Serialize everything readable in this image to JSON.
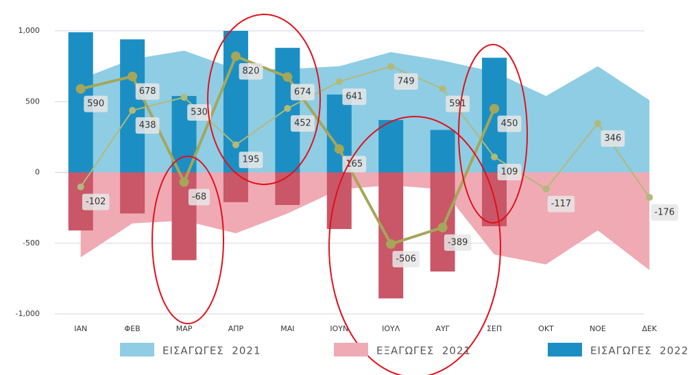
{
  "chart_data": {
    "type": "combo",
    "categories": [
      "ΙΑΝ",
      "ΦΕΒ",
      "ΜΑΡ",
      "ΑΠΡ",
      "ΜΑΙ",
      "ΙΟΥΝ",
      "ΙΟΥΛ",
      "ΑΥΓ",
      "ΣΕΠ",
      "ΟΚΤ",
      "ΝΟΕ",
      "ΔΕΚ"
    ],
    "ylim": [
      -1000,
      1000
    ],
    "yticks": [
      {
        "value": 1000,
        "label": "1,000"
      },
      500,
      0,
      -500,
      {
        "value": -1000,
        "label": "-1,000"
      }
    ],
    "grid": true,
    "series": [
      {
        "name": "ΕΙΣΑΓΩΓΕΣ  2021",
        "type": "area",
        "color": "#8fcde4",
        "values": [
          660,
          800,
          860,
          730,
          730,
          750,
          850,
          790,
          710,
          540,
          750,
          510
        ]
      },
      {
        "name": "ΕΞΑΓΩΓΕΣ  2021",
        "type": "area",
        "color": "#f0aab4",
        "values": [
          -600,
          -360,
          -340,
          -430,
          -290,
          -120,
          -90,
          -120,
          -580,
          -650,
          -410,
          -690
        ]
      },
      {
        "name": "ΕΙΣΑΓΩΓΕΣ  2022",
        "type": "bar",
        "color": "#1b8fc3",
        "values": [
          990,
          940,
          540,
          1000,
          880,
          550,
          370,
          300,
          810,
          null,
          null,
          null
        ]
      },
      {
        "type": "bar",
        "color": "#c95768",
        "values": [
          -410,
          -290,
          -620,
          -210,
          -230,
          -400,
          -890,
          -700,
          -380,
          null,
          null,
          null
        ]
      },
      {
        "type": "line",
        "color": "#b3b978",
        "width": 2,
        "values": [
          -102,
          438,
          530,
          195,
          452,
          641,
          749,
          591,
          109,
          -117,
          346,
          -176
        ]
      },
      {
        "type": "line",
        "color": "#a5a65a",
        "width": 4,
        "values": [
          590,
          678,
          -68,
          820,
          674,
          165,
          -506,
          -389,
          450,
          null,
          null,
          null
        ]
      }
    ]
  }
}
